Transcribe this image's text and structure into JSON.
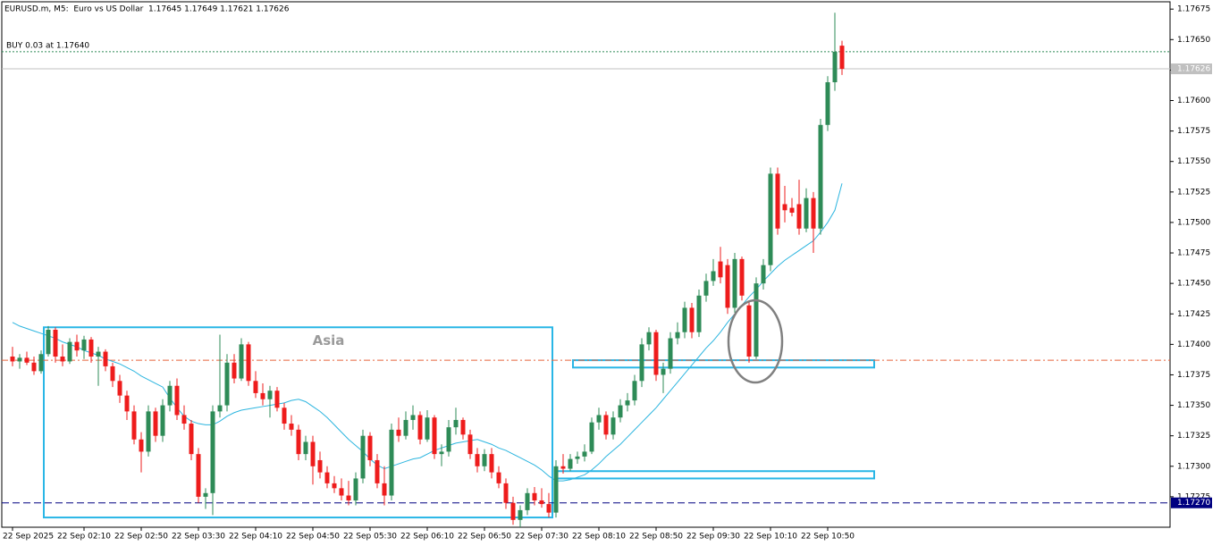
{
  "chart_data": {
    "type": "candlestick",
    "title": "EURUSD.m, M5:  Euro vs US Dollar  1.17645 1.17649 1.17621 1.17626",
    "up_color": "#2e8b57",
    "down_color": "#ee1c1c",
    "categories": [
      "22 Sep 2025",
      null,
      null,
      null,
      null,
      null,
      null,
      null,
      null,
      null,
      "22 Sep 02:10",
      null,
      null,
      null,
      null,
      null,
      null,
      null,
      "22 Sep 02:50",
      null,
      null,
      null,
      null,
      null,
      null,
      null,
      "22 Sep 03:30",
      null,
      null,
      null,
      null,
      null,
      null,
      null,
      "22 Sep 04:10",
      null,
      null,
      null,
      null,
      null,
      null,
      null,
      "22 Sep 04:50",
      null,
      null,
      null,
      null,
      null,
      null,
      null,
      "22 Sep 05:30",
      null,
      null,
      null,
      null,
      null,
      null,
      null,
      "22 Sep 06:10",
      null,
      null,
      null,
      null,
      null,
      null,
      null,
      "22 Sep 06:50",
      null,
      null,
      null,
      null,
      null,
      null,
      null,
      "22 Sep 07:30",
      null,
      null,
      null,
      null,
      null,
      null,
      null,
      "22 Sep 08:10",
      null,
      null,
      null,
      null,
      null,
      null,
      null,
      "22 Sep 08:50",
      null,
      null,
      null,
      null,
      null,
      null,
      null,
      "22 Sep 09:30",
      null,
      null,
      null,
      null,
      null,
      null,
      null,
      "22 Sep 10:10",
      null,
      null,
      null,
      null,
      null,
      null,
      null,
      "22 Sep 10:50",
      null,
      null
    ],
    "open": [
      1.1739,
      1.17386,
      1.17389,
      1.17385,
      1.17378,
      1.17392,
      1.17412,
      1.1739,
      1.17386,
      1.17402,
      1.17395,
      1.17404,
      1.1739,
      1.17394,
      1.17382,
      1.1737,
      1.17358,
      1.17345,
      1.17322,
      1.17312,
      1.17345,
      1.17325,
      1.1735,
      1.17366,
      1.17342,
      1.17335,
      1.1731,
      1.17275,
      1.17278,
      1.17345,
      1.1735,
      1.17385,
      1.17372,
      1.174,
      1.1737,
      1.1736,
      1.17355,
      1.17362,
      1.17348,
      1.17335,
      1.1733,
      1.1731,
      1.1732,
      1.17305,
      1.17295,
      1.17286,
      1.17282,
      1.17276,
      1.17272,
      1.1729,
      1.17325,
      1.17305,
      1.17286,
      1.17276,
      1.1733,
      1.17325,
      1.17338,
      1.17342,
      1.17322,
      1.1734,
      1.1731,
      1.17312,
      1.17332,
      1.17338,
      1.17326,
      1.1731,
      1.173,
      1.1731,
      1.17295,
      1.17286,
      1.1727,
      1.17256,
      1.17264,
      1.17278,
      1.17272,
      1.17269,
      1.17262,
      1.173,
      1.17298,
      1.17306,
      1.17308,
      1.17312,
      1.17336,
      1.17342,
      1.17326,
      1.1734,
      1.1735,
      1.17354,
      1.1737,
      1.174,
      1.1741,
      1.17375,
      1.1738,
      1.17405,
      1.1741,
      1.1743,
      1.1741,
      1.1744,
      1.17452,
      1.17468,
      1.17465,
      1.1743,
      1.1747,
      1.17432,
      1.1739,
      1.1745,
      1.17465,
      1.1754,
      1.17515,
      1.17512,
      1.17515,
      1.17495,
      1.1752,
      1.17495,
      1.1758,
      1.17615,
      1.17645
    ],
    "high": [
      1.17398,
      1.17392,
      1.17394,
      1.1739,
      1.17395,
      1.17415,
      1.17414,
      1.174,
      1.17405,
      1.17408,
      1.17407,
      1.17406,
      1.17398,
      1.17396,
      1.17385,
      1.17375,
      1.17362,
      1.1735,
      1.17328,
      1.1735,
      1.17348,
      1.17355,
      1.1737,
      1.17372,
      1.1735,
      1.17338,
      1.17315,
      1.17282,
      1.1735,
      1.17408,
      1.17392,
      1.17392,
      1.17405,
      1.17402,
      1.17378,
      1.17368,
      1.17366,
      1.17365,
      1.17352,
      1.17342,
      1.17334,
      1.17325,
      1.17325,
      1.17312,
      1.173,
      1.17292,
      1.1729,
      1.17288,
      1.17295,
      1.1733,
      1.17328,
      1.1731,
      1.173,
      1.17335,
      1.1734,
      1.17345,
      1.1735,
      1.17345,
      1.17346,
      1.17342,
      1.17318,
      1.17338,
      1.17348,
      1.1734,
      1.1733,
      1.17315,
      1.17314,
      1.17315,
      1.173,
      1.1729,
      1.17275,
      1.17268,
      1.17282,
      1.17283,
      1.17282,
      1.17278,
      1.17305,
      1.1731,
      1.1731,
      1.17312,
      1.17318,
      1.1734,
      1.17348,
      1.17345,
      1.17345,
      1.17355,
      1.1736,
      1.17375,
      1.17405,
      1.17414,
      1.17412,
      1.17385,
      1.1741,
      1.17418,
      1.17435,
      1.17434,
      1.17445,
      1.17458,
      1.1747,
      1.1748,
      1.1747,
      1.17475,
      1.17472,
      1.17436,
      1.17455,
      1.1747,
      1.17545,
      1.17545,
      1.1753,
      1.1752,
      1.17535,
      1.17528,
      1.17525,
      1.17585,
      1.1762,
      1.17672,
      1.17649
    ],
    "low": [
      1.17382,
      1.1738,
      1.17383,
      1.17375,
      1.17376,
      1.1739,
      1.17385,
      1.17382,
      1.17384,
      1.1739,
      1.17388,
      1.17385,
      1.17366,
      1.17378,
      1.17365,
      1.17352,
      1.17338,
      1.17318,
      1.17295,
      1.17308,
      1.1732,
      1.1732,
      1.17345,
      1.17338,
      1.1733,
      1.17305,
      1.1727,
      1.17265,
      1.1726,
      1.1734,
      1.17345,
      1.17368,
      1.1737,
      1.17366,
      1.17356,
      1.1735,
      1.1734,
      1.17345,
      1.1733,
      1.17325,
      1.17305,
      1.17305,
      1.17285,
      1.1729,
      1.17282,
      1.17278,
      1.17272,
      1.17268,
      1.17268,
      1.17286,
      1.173,
      1.17282,
      1.17268,
      1.17272,
      1.1732,
      1.17322,
      1.1733,
      1.17318,
      1.1732,
      1.17306,
      1.173,
      1.17308,
      1.17326,
      1.17322,
      1.17306,
      1.17295,
      1.17296,
      1.1729,
      1.17282,
      1.17265,
      1.17252,
      1.1725,
      1.1726,
      1.17268,
      1.17266,
      1.17258,
      1.17258,
      1.17294,
      1.17296,
      1.17302,
      1.17304,
      1.1731,
      1.1733,
      1.17322,
      1.17322,
      1.17336,
      1.17345,
      1.1735,
      1.17365,
      1.17395,
      1.1737,
      1.1736,
      1.17376,
      1.174,
      1.17405,
      1.17405,
      1.17406,
      1.17435,
      1.17448,
      1.1745,
      1.17425,
      1.17426,
      1.17436,
      1.17385,
      1.17388,
      1.17445,
      1.1746,
      1.1749,
      1.175,
      1.17505,
      1.1749,
      1.17492,
      1.17475,
      1.1749,
      1.17575,
      1.17608,
      1.17621
    ],
    "close": [
      1.17386,
      1.17389,
      1.17385,
      1.17378,
      1.17392,
      1.17412,
      1.1739,
      1.17386,
      1.17402,
      1.17395,
      1.17404,
      1.1739,
      1.17394,
      1.17382,
      1.1737,
      1.17358,
      1.17345,
      1.17322,
      1.17312,
      1.17345,
      1.17325,
      1.1735,
      1.17366,
      1.17342,
      1.17335,
      1.1731,
      1.17275,
      1.17278,
      1.17345,
      1.1735,
      1.17385,
      1.17372,
      1.174,
      1.1737,
      1.1736,
      1.17355,
      1.17362,
      1.17348,
      1.17335,
      1.1733,
      1.1731,
      1.1732,
      1.173,
      1.17295,
      1.17286,
      1.17282,
      1.17276,
      1.17272,
      1.1729,
      1.17325,
      1.17305,
      1.17286,
      1.17276,
      1.1733,
      1.17325,
      1.17338,
      1.17342,
      1.17322,
      1.1734,
      1.1731,
      1.17312,
      1.17332,
      1.17338,
      1.17326,
      1.1731,
      1.173,
      1.1731,
      1.17295,
      1.17286,
      1.1727,
      1.17256,
      1.17264,
      1.17278,
      1.17272,
      1.17269,
      1.17262,
      1.173,
      1.17298,
      1.17306,
      1.17308,
      1.17312,
      1.17336,
      1.17342,
      1.17326,
      1.1734,
      1.1735,
      1.17354,
      1.1737,
      1.174,
      1.1741,
      1.17375,
      1.1738,
      1.17405,
      1.1741,
      1.1743,
      1.1741,
      1.1744,
      1.17452,
      1.1746,
      1.17455,
      1.1743,
      1.1747,
      1.1744,
      1.1739,
      1.1745,
      1.17465,
      1.1754,
      1.17495,
      1.1751,
      1.17508,
      1.17495,
      1.1752,
      1.17495,
      1.1758,
      1.17615,
      1.1764,
      1.17626
    ],
    "ma": {
      "color": "#2cb5df",
      "values": [
        1.17418,
        1.17415,
        1.17413,
        1.17411,
        1.17409,
        1.17407,
        1.17405,
        1.17402,
        1.174,
        1.17398,
        1.17395,
        1.17393,
        1.17391,
        1.17388,
        1.17386,
        1.17384,
        1.17381,
        1.17378,
        1.17374,
        1.17371,
        1.17368,
        1.17365,
        1.17356,
        1.17348,
        1.17341,
        1.17337,
        1.17335,
        1.17334,
        1.17334,
        1.17337,
        1.17341,
        1.17344,
        1.17346,
        1.17347,
        1.17348,
        1.17349,
        1.1735,
        1.17351,
        1.17352,
        1.17354,
        1.17355,
        1.17353,
        1.17349,
        1.17345,
        1.1734,
        1.17334,
        1.17328,
        1.17322,
        1.17317,
        1.17312,
        1.17306,
        1.17301,
        1.17298,
        1.173,
        1.17302,
        1.17304,
        1.17306,
        1.17307,
        1.1731,
        1.17313,
        1.17315,
        1.17317,
        1.17319,
        1.1732,
        1.17321,
        1.17322,
        1.1732,
        1.17318,
        1.17315,
        1.17313,
        1.1731,
        1.17307,
        1.17304,
        1.17301,
        1.17297,
        1.17292,
        1.17288,
        1.17288,
        1.17289,
        1.17291,
        1.17293,
        1.17297,
        1.17302,
        1.17308,
        1.17313,
        1.17318,
        1.17324,
        1.1733,
        1.17336,
        1.17342,
        1.17348,
        1.17355,
        1.17362,
        1.17369,
        1.17376,
        1.17383,
        1.1739,
        1.17397,
        1.17403,
        1.1741,
        1.17418,
        1.17425,
        1.17432,
        1.17439,
        1.17445,
        1.17452,
        1.17458,
        1.17464,
        1.17469,
        1.17473,
        1.17477,
        1.17481,
        1.17485,
        1.17492,
        1.175,
        1.1751,
        1.17532
      ]
    },
    "ylim": [
      1.1725,
      1.17681
    ],
    "yticks": [
      {
        "value": 1.17275,
        "label": "1.17275"
      },
      {
        "value": 1.173,
        "label": "1.17300"
      },
      {
        "value": 1.17325,
        "label": "1.17325"
      },
      {
        "value": 1.1735,
        "label": "1.17350"
      },
      {
        "value": 1.17375,
        "label": "1.17375"
      },
      {
        "value": 1.174,
        "label": "1.17400"
      },
      {
        "value": 1.17425,
        "label": "1.17425"
      },
      {
        "value": 1.1745,
        "label": "1.17450"
      },
      {
        "value": 1.17475,
        "label": "1.17475"
      },
      {
        "value": 1.175,
        "label": "1.17500"
      },
      {
        "value": 1.17525,
        "label": "1.17525"
      },
      {
        "value": 1.1755,
        "label": "1.17550"
      },
      {
        "value": 1.17575,
        "label": "1.17575"
      },
      {
        "value": 1.176,
        "label": "1.17600"
      },
      {
        "value": 1.17625,
        "label": "1.17625"
      },
      {
        "value": 1.1765,
        "label": "1.17650"
      },
      {
        "value": 1.17675,
        "label": "1.17675"
      }
    ],
    "hlines": [
      {
        "value": 1.1764,
        "color": "#2e8b57",
        "dash": "2,2",
        "text": "BUY 0.03 at 1.17640"
      },
      {
        "value": 1.17626,
        "color": "#c0c0c0",
        "dash": "none",
        "label": "1.17626"
      },
      {
        "value": 1.1727,
        "color": "#000080",
        "dash": "8,4",
        "label": "1.17270"
      },
      {
        "value": 1.17387,
        "color": "#e8643c",
        "dash": "7,3,2,3"
      }
    ],
    "zones": [
      {
        "top": 1.17414,
        "bottom": 1.17258,
        "color": "#29b6e6",
        "label": "Asia"
      },
      {
        "top": 1.17387,
        "bottom": 1.17381,
        "color": "#29b6e6"
      },
      {
        "top": 1.17296,
        "bottom": 1.1729,
        "color": "#29b6e6"
      }
    ]
  }
}
